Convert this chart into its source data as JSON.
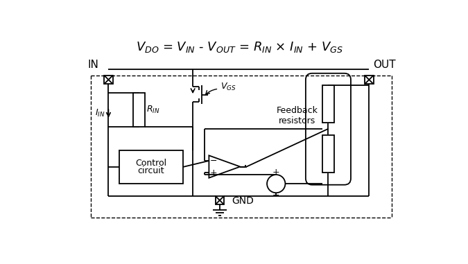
{
  "figsize": [
    6.75,
    3.81
  ],
  "dpi": 100,
  "title": "$V_{DO}$ = $V_{IN}$ - $V_{OUT}$ = $R_{IN}$ × $I_{IN}$ + $V_{GS}$",
  "IN_label": "IN",
  "OUT_label": "OUT",
  "GND_label": "GND",
  "ctrl_label1": "Control",
  "ctrl_label2": "circuit",
  "fb_label": "Feedback\nresistors",
  "VGS_label": "$V_{GS}$",
  "IIN_label": "$I_{IN}$",
  "RIN_label": "$R_{IN}$",
  "plus": "+",
  "minus": "−",
  "lw": 1.3,
  "dash_lw": 1.0
}
